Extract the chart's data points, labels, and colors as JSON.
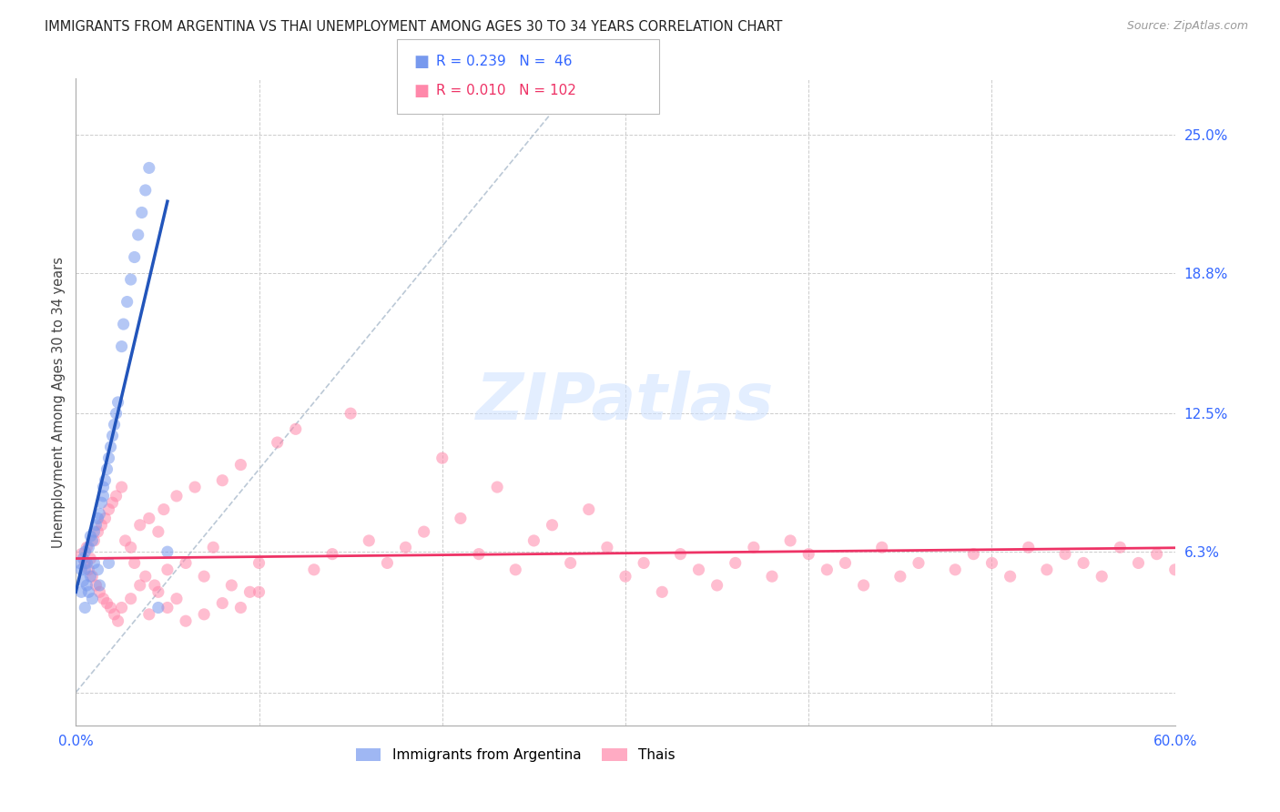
{
  "title": "IMMIGRANTS FROM ARGENTINA VS THAI UNEMPLOYMENT AMONG AGES 30 TO 34 YEARS CORRELATION CHART",
  "source": "Source: ZipAtlas.com",
  "ylabel": "Unemployment Among Ages 30 to 34 years",
  "xlim": [
    0.0,
    0.6
  ],
  "ylim": [
    -0.015,
    0.275
  ],
  "yticks_right": [
    0.0,
    0.063,
    0.125,
    0.188,
    0.25
  ],
  "ytick_right_labels": [
    "",
    "6.3%",
    "12.5%",
    "18.8%",
    "25.0%"
  ],
  "grid_color": "#cccccc",
  "background_color": "#ffffff",
  "legend_R1": "0.239",
  "legend_N1": "46",
  "legend_R2": "0.010",
  "legend_N2": "102",
  "color_argentina": "#7799ee",
  "color_thai": "#ff88aa",
  "arg_x": [
    0.002,
    0.003,
    0.003,
    0.004,
    0.004,
    0.005,
    0.005,
    0.005,
    0.006,
    0.006,
    0.007,
    0.007,
    0.008,
    0.008,
    0.009,
    0.009,
    0.01,
    0.01,
    0.011,
    0.012,
    0.012,
    0.013,
    0.013,
    0.014,
    0.015,
    0.015,
    0.016,
    0.017,
    0.018,
    0.018,
    0.019,
    0.02,
    0.021,
    0.022,
    0.023,
    0.025,
    0.026,
    0.028,
    0.03,
    0.032,
    0.034,
    0.036,
    0.038,
    0.04,
    0.045,
    0.05
  ],
  "arg_y": [
    0.058,
    0.055,
    0.045,
    0.06,
    0.05,
    0.063,
    0.055,
    0.038,
    0.058,
    0.048,
    0.065,
    0.045,
    0.07,
    0.052,
    0.068,
    0.042,
    0.072,
    0.058,
    0.075,
    0.078,
    0.055,
    0.08,
    0.048,
    0.085,
    0.088,
    0.092,
    0.095,
    0.1,
    0.105,
    0.058,
    0.11,
    0.115,
    0.12,
    0.125,
    0.13,
    0.155,
    0.165,
    0.175,
    0.185,
    0.195,
    0.205,
    0.215,
    0.225,
    0.235,
    0.038,
    0.063
  ],
  "thai_x": [
    0.003,
    0.005,
    0.006,
    0.007,
    0.008,
    0.009,
    0.01,
    0.011,
    0.012,
    0.013,
    0.014,
    0.015,
    0.016,
    0.017,
    0.018,
    0.019,
    0.02,
    0.021,
    0.022,
    0.023,
    0.025,
    0.027,
    0.03,
    0.032,
    0.035,
    0.038,
    0.04,
    0.043,
    0.045,
    0.048,
    0.05,
    0.055,
    0.06,
    0.065,
    0.07,
    0.075,
    0.08,
    0.085,
    0.09,
    0.095,
    0.1,
    0.11,
    0.12,
    0.13,
    0.14,
    0.15,
    0.16,
    0.17,
    0.18,
    0.19,
    0.2,
    0.21,
    0.22,
    0.23,
    0.24,
    0.25,
    0.26,
    0.27,
    0.28,
    0.29,
    0.3,
    0.31,
    0.32,
    0.33,
    0.34,
    0.35,
    0.36,
    0.37,
    0.38,
    0.39,
    0.4,
    0.41,
    0.42,
    0.43,
    0.44,
    0.45,
    0.46,
    0.48,
    0.49,
    0.5,
    0.51,
    0.52,
    0.53,
    0.54,
    0.55,
    0.56,
    0.57,
    0.58,
    0.59,
    0.6,
    0.025,
    0.03,
    0.035,
    0.04,
    0.045,
    0.05,
    0.055,
    0.06,
    0.07,
    0.08,
    0.09,
    0.1
  ],
  "thai_y": [
    0.062,
    0.058,
    0.065,
    0.055,
    0.06,
    0.052,
    0.068,
    0.048,
    0.072,
    0.045,
    0.075,
    0.042,
    0.078,
    0.04,
    0.082,
    0.038,
    0.085,
    0.035,
    0.088,
    0.032,
    0.092,
    0.068,
    0.065,
    0.058,
    0.075,
    0.052,
    0.078,
    0.048,
    0.072,
    0.082,
    0.055,
    0.088,
    0.058,
    0.092,
    0.052,
    0.065,
    0.095,
    0.048,
    0.102,
    0.045,
    0.058,
    0.112,
    0.118,
    0.055,
    0.062,
    0.125,
    0.068,
    0.058,
    0.065,
    0.072,
    0.105,
    0.078,
    0.062,
    0.092,
    0.055,
    0.068,
    0.075,
    0.058,
    0.082,
    0.065,
    0.052,
    0.058,
    0.045,
    0.062,
    0.055,
    0.048,
    0.058,
    0.065,
    0.052,
    0.068,
    0.062,
    0.055,
    0.058,
    0.048,
    0.065,
    0.052,
    0.058,
    0.055,
    0.062,
    0.058,
    0.052,
    0.065,
    0.055,
    0.062,
    0.058,
    0.052,
    0.065,
    0.058,
    0.062,
    0.055,
    0.038,
    0.042,
    0.048,
    0.035,
    0.045,
    0.038,
    0.042,
    0.032,
    0.035,
    0.04,
    0.038,
    0.045
  ]
}
